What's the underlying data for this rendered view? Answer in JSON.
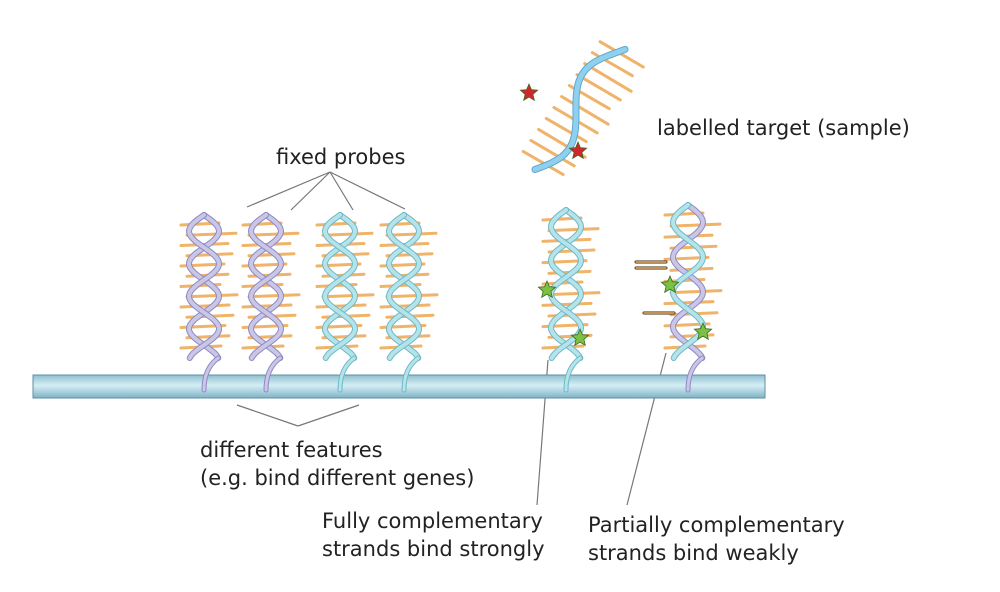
{
  "labels": {
    "fixed_probes": "fixed probes",
    "target": "labelled target (sample)",
    "features_line1": "different features",
    "features_line2": "(e.g. bind different genes)",
    "fully_line1": "Fully complementary",
    "fully_line2": "strands bind strongly",
    "partial_line1": "Partially complementary",
    "partial_line2": "strands bind weakly"
  },
  "colors": {
    "slide": "#a9cfdc",
    "slide_edge": "#5e8fa3",
    "strand_purple": "#c9c6e6",
    "strand_purple_edge": "#8e89c2",
    "strand_cyan": "#b4e3ea",
    "strand_cyan_edge": "#6fb8c6",
    "target_blue": "#8fd0ef",
    "base": "#f0b36a",
    "star_green": "#7cc142",
    "star_red": "#d3262c",
    "line": "#777777"
  }
}
